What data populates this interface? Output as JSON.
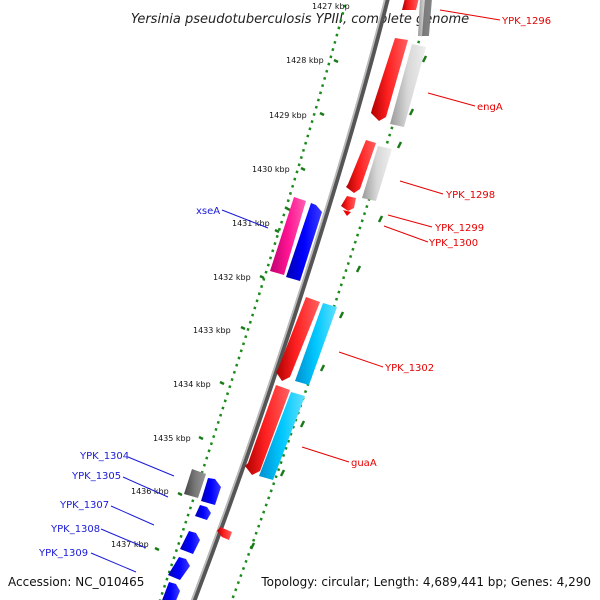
{
  "title": "Yersinia pseudotuberculosis YPIII, complete genome",
  "footer": {
    "accession": "Accession: NC_010465",
    "topology": "Topology: circular; Length: 4,689,441 bp; Genes: 4,290"
  },
  "ticks": {
    "partial_top": "1427 kbp",
    "t1428": "1428 kbp",
    "t1429": "1429 kbp",
    "t1430": "1430 kbp",
    "t1431": "1431 kbp",
    "t1432": "1432 kbp",
    "t1433": "1433 kbp",
    "t1434": "1434 kbp",
    "t1435": "1435 kbp",
    "t1436": "1436 kbp",
    "t1437": "1437 kbp"
  },
  "genes": {
    "ypk1296": "YPK_1296",
    "enga": "engA",
    "ypk1298": "YPK_1298",
    "ypk1299": "YPK_1299",
    "ypk1300": "YPK_1300",
    "ypk1302": "YPK_1302",
    "guaa": "guaA",
    "xsea": "xseA",
    "ypk1304": "YPK_1304",
    "ypk1305": "YPK_1305",
    "ypk1307": "YPK_1307",
    "ypk1308": "YPK_1308",
    "ypk1309": "YPK_1309"
  },
  "colors": {
    "forward_cds": "#ff0000",
    "forward_rna": "#bcbcbc",
    "reverse_cds": "#0000ff",
    "reverse_other": "#ff1493",
    "cog_cyan": "#00bfff",
    "gray_gene": "#666666",
    "backbone": "#777777",
    "tick_green": "#1a8a1a"
  }
}
